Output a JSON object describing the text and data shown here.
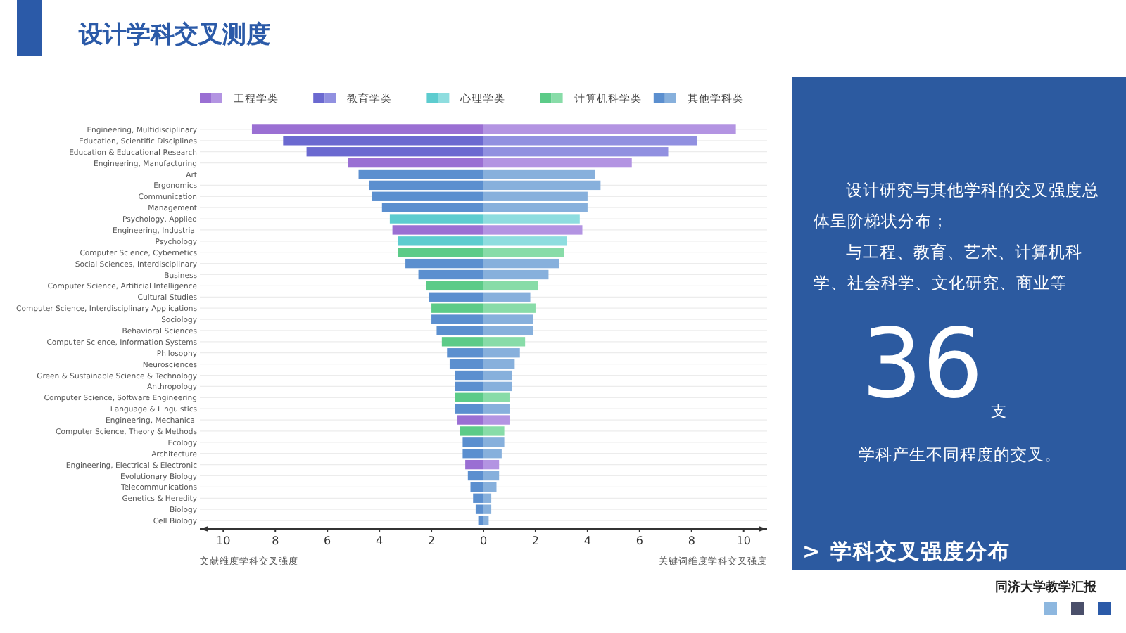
{
  "chart_data": {
    "type": "bar",
    "orientation": "horizontal",
    "title": "设计学科交叉测度",
    "xlabel": "关键词维度学科交叉强度",
    "annotations": [
      "文献维度学科交叉强度",
      "设计研究与其他学科的交叉强度总体呈阶梯状分布；",
      "与工程、教育、艺术、计算机科学、社会科学、文化研究、商业等",
      "36",
      "支",
      "学科产生不同程度的交叉。",
      "> 学科交叉强度分布",
      "同济大学教学汇报"
    ],
    "categories": [
      "Engineering, Multidisciplinary",
      "Education, Scientific Disciplines",
      "Education & Educational Research",
      "Engineering, Manufacturing",
      "Art",
      "Ergonomics",
      "Communication",
      "Management",
      "Psychology, Applied",
      "Engineering, Industrial",
      "Psychology",
      "Computer Science, Cybernetics",
      "Social Sciences, Interdisciplinary",
      "Business",
      "Computer Science, Artificial Intelligence",
      "Cultural Studies",
      "Computer Science, Interdisciplinary Applications",
      "Sociology",
      "Behavioral Sciences",
      "Computer Science, Information Systems",
      "Philosophy",
      "Neurosciences",
      "Green & Sustainable Science & Technology",
      "Anthropology",
      "Computer Science, Software Engineering",
      "Language & Linguistics",
      "Engineering, Mechanical",
      "Computer Science, Theory & Methods",
      "Ecology",
      "Architecture",
      "Engineering, Electrical & Electronic",
      "Evolutionary Biology",
      "Telecommunications",
      "Genetics & Heredity",
      "Biology",
      "Cell Biology"
    ],
    "series": [
      {
        "name": "工程学类",
        "color": "#9a6fd3",
        "values": [
          -8.9,
          null,
          null,
          -5.2,
          null,
          null,
          null,
          null,
          null,
          -3.5,
          null,
          null,
          null,
          null,
          null,
          null,
          null,
          null,
          null,
          null,
          null,
          null,
          null,
          null,
          null,
          null,
          -1.0,
          null,
          null,
          null,
          -0.7,
          null,
          null,
          null,
          null,
          null
        ]
      },
      {
        "color": "#b394e2",
        "values": [
          9.7,
          null,
          null,
          5.7,
          null,
          null,
          null,
          null,
          null,
          3.8,
          null,
          null,
          null,
          null,
          null,
          null,
          null,
          null,
          null,
          null,
          null,
          null,
          null,
          null,
          null,
          null,
          1.0,
          null,
          null,
          null,
          0.6,
          null,
          null,
          null,
          null,
          null
        ]
      },
      {
        "name": "教育学类",
        "color": "#6b69d0",
        "values": [
          null,
          -7.7,
          -6.8,
          null,
          null,
          null,
          null,
          null,
          null,
          null,
          null,
          null,
          null,
          null,
          null,
          null,
          null,
          null,
          null,
          null,
          null,
          null,
          null,
          null,
          null,
          null,
          null,
          null,
          null,
          null,
          null,
          null,
          null,
          null,
          null,
          null
        ]
      },
      {
        "color": "#9190e0",
        "values": [
          null,
          8.2,
          7.1,
          null,
          null,
          null,
          null,
          null,
          null,
          null,
          null,
          null,
          null,
          null,
          null,
          null,
          null,
          null,
          null,
          null,
          null,
          null,
          null,
          null,
          null,
          null,
          null,
          null,
          null,
          null,
          null,
          null,
          null,
          null,
          null,
          null
        ]
      },
      {
        "name": "心理学类",
        "color": "#5dcccf",
        "values": [
          null,
          null,
          null,
          null,
          null,
          null,
          null,
          null,
          -3.6,
          null,
          -3.3,
          null,
          null,
          null,
          null,
          null,
          null,
          null,
          null,
          null,
          null,
          null,
          null,
          null,
          null,
          null,
          null,
          null,
          null,
          null,
          null,
          null,
          null,
          null,
          null,
          null
        ]
      },
      {
        "color": "#8edddf",
        "values": [
          null,
          null,
          null,
          null,
          null,
          null,
          null,
          null,
          3.7,
          null,
          3.2,
          null,
          null,
          null,
          null,
          null,
          null,
          null,
          null,
          null,
          null,
          null,
          null,
          null,
          null,
          null,
          null,
          null,
          null,
          null,
          null,
          null,
          null,
          null,
          null,
          null
        ]
      },
      {
        "name": "计算机科学类",
        "color": "#5ccb88",
        "values": [
          null,
          null,
          null,
          null,
          null,
          null,
          null,
          null,
          null,
          null,
          null,
          -3.3,
          null,
          null,
          -2.2,
          null,
          -2.0,
          null,
          null,
          -1.6,
          null,
          null,
          null,
          null,
          -1.1,
          null,
          null,
          -0.9,
          null,
          null,
          null,
          null,
          null,
          null,
          null,
          null
        ]
      },
      {
        "color": "#88dca8",
        "values": [
          null,
          null,
          null,
          null,
          null,
          null,
          null,
          null,
          null,
          null,
          null,
          3.1,
          null,
          null,
          2.1,
          null,
          2.0,
          null,
          null,
          1.6,
          null,
          null,
          null,
          null,
          1.0,
          null,
          null,
          0.8,
          null,
          null,
          null,
          null,
          null,
          null,
          null,
          null
        ]
      },
      {
        "name": "其他学科类",
        "color": "#5b8fcf",
        "values": [
          null,
          null,
          null,
          null,
          -4.8,
          -4.4,
          -4.3,
          -3.9,
          null,
          null,
          null,
          null,
          -3.0,
          -2.5,
          null,
          -2.1,
          null,
          -2.0,
          -1.8,
          null,
          -1.4,
          -1.3,
          -1.1,
          -1.1,
          null,
          -1.1,
          null,
          null,
          -0.8,
          -0.8,
          null,
          -0.6,
          -0.5,
          -0.4,
          -0.3,
          -0.2
        ]
      },
      {
        "color": "#87b0dc",
        "values": [
          null,
          null,
          null,
          null,
          4.3,
          4.5,
          4.0,
          4.0,
          null,
          null,
          null,
          null,
          2.9,
          2.5,
          null,
          1.8,
          null,
          1.9,
          1.9,
          null,
          1.4,
          1.2,
          1.1,
          1.1,
          null,
          1.0,
          null,
          null,
          0.8,
          0.7,
          null,
          0.6,
          0.5,
          0.3,
          0.3,
          0.2
        ]
      }
    ],
    "xlim": [
      -10.9,
      10.9
    ],
    "xticks": [
      {
        "value": -10,
        "label": "10"
      },
      {
        "value": -8,
        "label": "8"
      },
      {
        "value": -6,
        "label": "6"
      },
      {
        "value": -4,
        "label": "4"
      },
      {
        "value": -2,
        "label": "2"
      },
      0,
      2,
      4,
      6,
      8,
      10
    ],
    "grid": "y",
    "legend": "top",
    "stacked": true
  }
}
